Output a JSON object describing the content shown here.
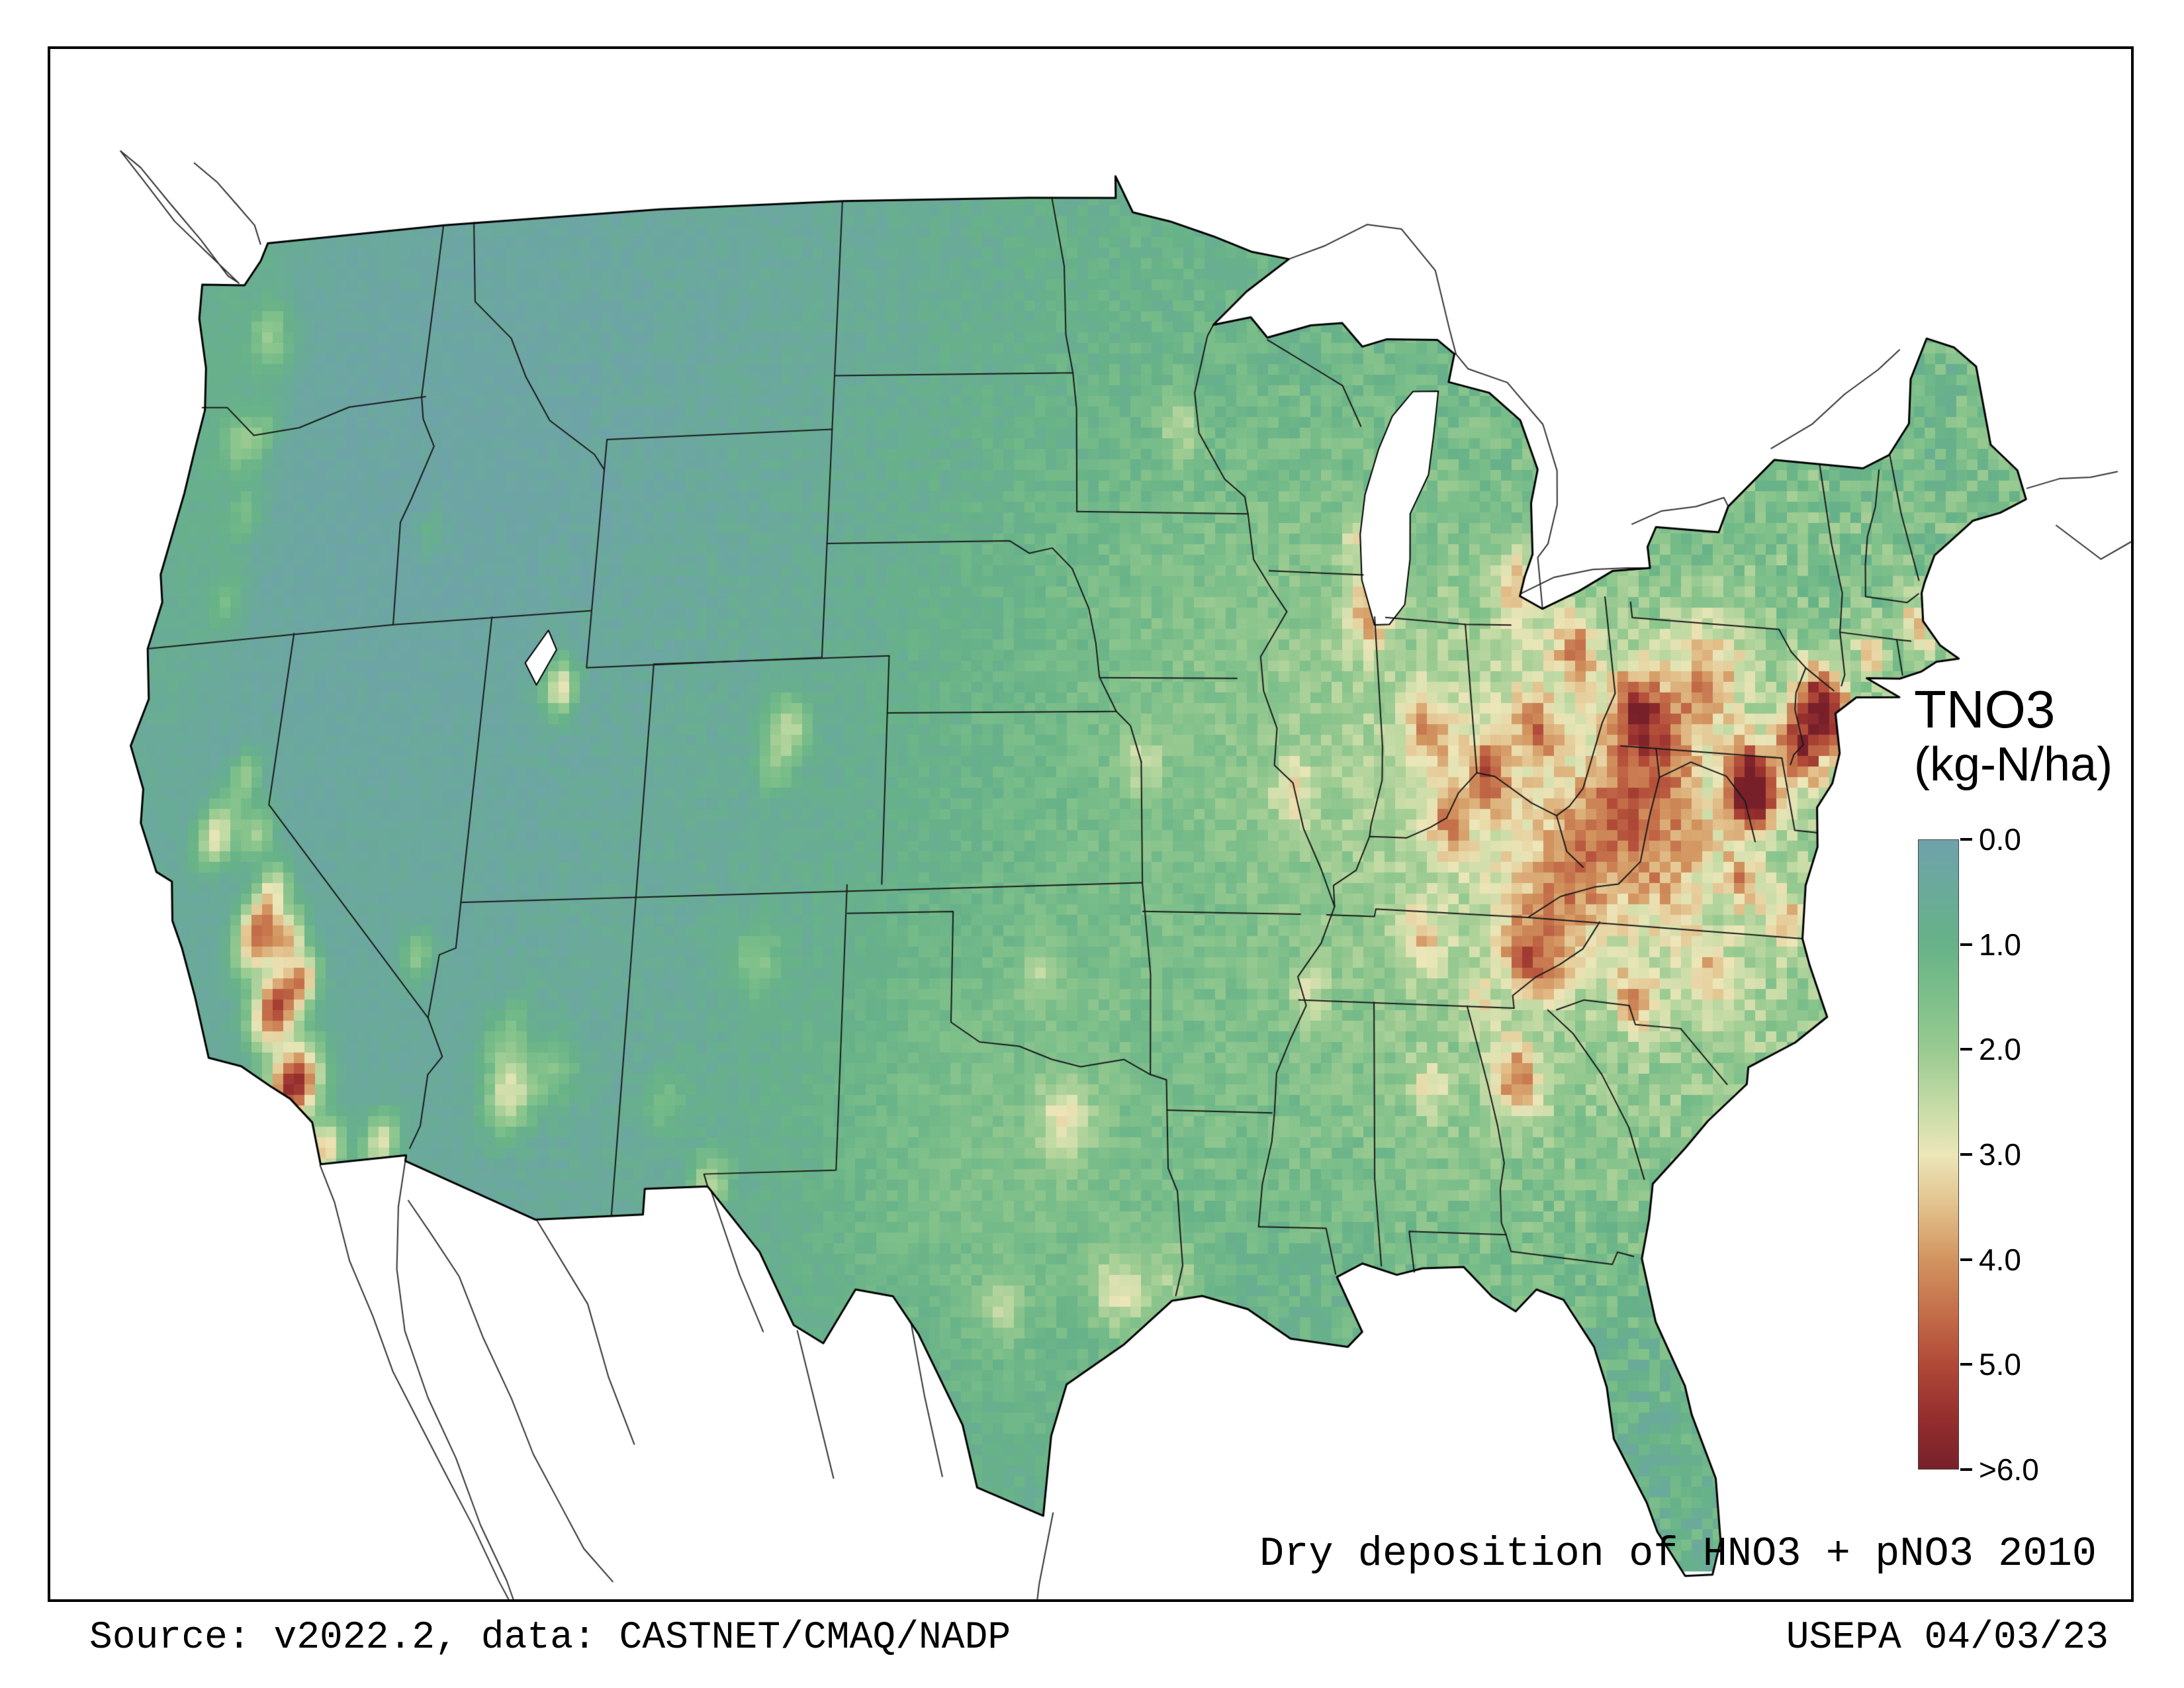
{
  "legend": {
    "title": "TNO3",
    "units": "(kg-N/ha)",
    "ticks": [
      "0.0",
      "1.0",
      "2.0",
      "3.0",
      "4.0",
      "5.0",
      ">6.0"
    ],
    "range": [
      0,
      6
    ],
    "colormap": [
      {
        "value": 0.0,
        "color": "#6fa2ab"
      },
      {
        "value": 0.5,
        "color": "#6aaa99"
      },
      {
        "value": 1.0,
        "color": "#67b288"
      },
      {
        "value": 1.5,
        "color": "#7dbf8a"
      },
      {
        "value": 2.0,
        "color": "#99ca91"
      },
      {
        "value": 2.5,
        "color": "#c2daa4"
      },
      {
        "value": 3.0,
        "color": "#ece6b9"
      },
      {
        "value": 3.5,
        "color": "#e2c08b"
      },
      {
        "value": 4.0,
        "color": "#d2945f"
      },
      {
        "value": 4.5,
        "color": "#c46f4a"
      },
      {
        "value": 5.0,
        "color": "#b14a38"
      },
      {
        "value": 5.5,
        "color": "#952f2e"
      },
      {
        "value": 6.0,
        "color": "#78202a"
      }
    ]
  },
  "footer": {
    "caption": "Dry deposition of HNO3 + pNO3 2010",
    "source": "Source: v2022.2, data: CASTNET/CMAQ/NADP",
    "agency_date": "USEPA 04/03/23"
  },
  "colors": {
    "background": "#ffffff",
    "frame": "#000000",
    "state_border": "#1a1a1a",
    "country_border": "#333333",
    "us_outline": "#000000"
  }
}
